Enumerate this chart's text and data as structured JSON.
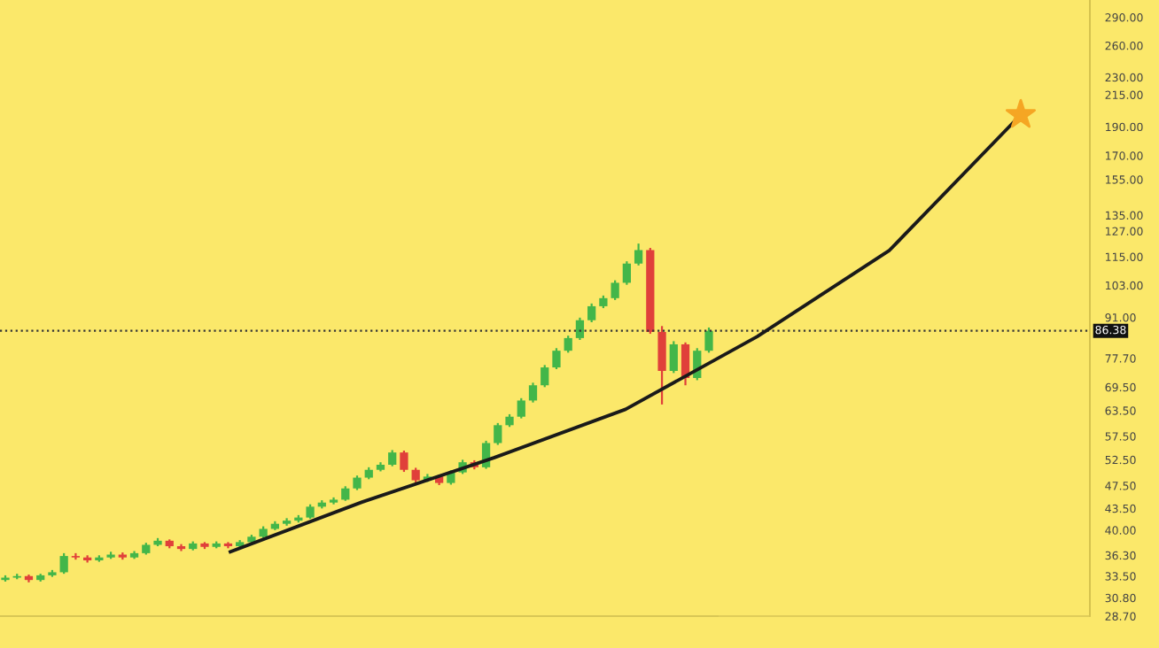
{
  "chart_data": [
    {
      "type": "candlestick",
      "categories": [
        null,
        null,
        null,
        null,
        null,
        null,
        null,
        null,
        null,
        null,
        null,
        null,
        null,
        null,
        null,
        null,
        null,
        null,
        null,
        null,
        null,
        null,
        null,
        null,
        null,
        null,
        null,
        null,
        null,
        null,
        null,
        null,
        null,
        null,
        null,
        null,
        null,
        null,
        null,
        null,
        null,
        null,
        null,
        null,
        null,
        null,
        null,
        null,
        null,
        null,
        null,
        null,
        null,
        null,
        null,
        null,
        null,
        null,
        null,
        null,
        null
      ],
      "ohlc": [
        [
          33.0,
          33.6,
          32.8,
          33.3
        ],
        [
          33.3,
          33.8,
          33.1,
          33.5
        ],
        [
          33.5,
          33.7,
          32.7,
          33.0
        ],
        [
          33.0,
          33.8,
          32.8,
          33.6
        ],
        [
          33.6,
          34.3,
          33.4,
          34.0
        ],
        [
          34.0,
          36.6,
          33.8,
          36.2
        ],
        [
          36.2,
          36.6,
          35.7,
          36.0
        ],
        [
          36.0,
          36.3,
          35.3,
          35.6
        ],
        [
          35.6,
          36.3,
          35.4,
          36.0
        ],
        [
          36.0,
          36.8,
          35.8,
          36.4
        ],
        [
          36.4,
          36.7,
          35.7,
          36.0
        ],
        [
          36.0,
          36.9,
          35.8,
          36.6
        ],
        [
          36.6,
          38.1,
          36.4,
          37.8
        ],
        [
          37.8,
          38.8,
          37.6,
          38.4
        ],
        [
          38.4,
          38.6,
          37.3,
          37.6
        ],
        [
          37.6,
          37.9,
          36.9,
          37.2
        ],
        [
          37.2,
          38.3,
          37.0,
          38.0
        ],
        [
          38.0,
          38.2,
          37.2,
          37.5
        ],
        [
          37.5,
          38.3,
          37.3,
          38.0
        ],
        [
          38.0,
          38.2,
          37.3,
          37.6
        ],
        [
          37.6,
          38.5,
          37.4,
          38.2
        ],
        [
          38.2,
          39.3,
          38.0,
          39.0
        ],
        [
          39.0,
          40.6,
          38.8,
          40.2
        ],
        [
          40.2,
          41.4,
          40.0,
          41.0
        ],
        [
          41.0,
          41.9,
          40.7,
          41.5
        ],
        [
          41.5,
          42.4,
          41.2,
          42.0
        ],
        [
          42.0,
          44.2,
          41.8,
          43.8
        ],
        [
          43.8,
          44.9,
          43.5,
          44.5
        ],
        [
          44.5,
          45.4,
          44.2,
          45.0
        ],
        [
          45.0,
          47.4,
          44.8,
          47.0
        ],
        [
          47.0,
          49.4,
          46.7,
          49.0
        ],
        [
          49.0,
          51.0,
          48.7,
          50.5
        ],
        [
          50.5,
          52.0,
          50.2,
          51.5
        ],
        [
          51.5,
          54.5,
          51.2,
          54.0
        ],
        [
          54.0,
          54.4,
          50.1,
          50.5
        ],
        [
          50.5,
          50.9,
          48.1,
          48.5
        ],
        [
          48.5,
          49.7,
          48.2,
          49.2
        ],
        [
          49.2,
          49.6,
          47.6,
          48.0
        ],
        [
          48.0,
          50.4,
          47.7,
          50.0
        ],
        [
          50.0,
          52.5,
          49.7,
          52.0
        ],
        [
          52.0,
          52.4,
          50.6,
          51.0
        ],
        [
          51.0,
          56.5,
          50.7,
          56.0
        ],
        [
          56.0,
          60.5,
          55.6,
          60.0
        ],
        [
          60.0,
          62.6,
          59.6,
          62.0
        ],
        [
          62.0,
          66.6,
          61.6,
          66.0
        ],
        [
          66.0,
          70.7,
          65.5,
          70.0
        ],
        [
          70.0,
          75.7,
          69.5,
          75.0
        ],
        [
          75.0,
          80.8,
          74.5,
          80.0
        ],
        [
          80.0,
          84.8,
          79.4,
          84.0
        ],
        [
          84.0,
          90.9,
          83.4,
          90.0
        ],
        [
          90.0,
          96.0,
          89.3,
          95.0
        ],
        [
          95.0,
          99.0,
          94.3,
          98.0
        ],
        [
          98.0,
          105.0,
          97.3,
          104.0
        ],
        [
          104.0,
          113.0,
          103.2,
          112.0
        ],
        [
          112.0,
          121.0,
          111.2,
          118.0
        ],
        [
          118.0,
          119.0,
          85.4,
          86.0
        ],
        [
          86.0,
          88.0,
          65.0,
          74.0
        ],
        [
          74.0,
          83.0,
          73.4,
          82.0
        ],
        [
          82.0,
          82.6,
          70.0,
          72.0
        ],
        [
          72.0,
          80.8,
          71.4,
          80.0
        ],
        [
          80.0,
          87.5,
          79.4,
          86.38
        ]
      ],
      "colors": [
        "#43b649",
        "#43b649",
        "#e0403a",
        "#43b649",
        "#43b649",
        "#43b649",
        "#e0403a",
        "#e0403a",
        "#43b649",
        "#43b649",
        "#e0403a",
        "#43b649",
        "#43b649",
        "#43b649",
        "#e0403a",
        "#e0403a",
        "#43b649",
        "#e0403a",
        "#43b649",
        "#e0403a",
        "#43b649",
        "#43b649",
        "#43b649",
        "#43b649",
        "#43b649",
        "#43b649",
        "#43b649",
        "#43b649",
        "#43b649",
        "#43b649",
        "#43b649",
        "#43b649",
        "#43b649",
        "#43b649",
        "#e0403a",
        "#e0403a",
        "#43b649",
        "#e0403a",
        "#43b649",
        "#43b649",
        "#e0403a",
        "#43b649",
        "#43b649",
        "#43b649",
        "#43b649",
        "#43b649",
        "#43b649",
        "#43b649",
        "#43b649",
        "#43b649",
        "#43b649",
        "#43b649",
        "#43b649",
        "#43b649",
        "#43b649",
        "#e0403a",
        "#e0403a",
        "#43b649",
        "#e0403a",
        "#43b649",
        "#43b649"
      ],
      "ylim": [
        28.7,
        310
      ],
      "log": true,
      "tick_labels": false
    },
    {
      "type": "line",
      "categories": [
        null,
        null,
        null,
        null,
        null,
        null,
        null
      ],
      "series": [
        {
          "values": [
            36.8,
            44.6,
            52.9,
            63.8,
            84.5,
            117.7,
            199
          ],
          "color": "#1a1a1a"
        }
      ],
      "ylim": [
        28.7,
        310
      ],
      "log": true,
      "yticks": [
        {
          "value": 290,
          "label": "290.00"
        },
        {
          "value": 260,
          "label": "260.00"
        },
        {
          "value": 230,
          "label": "230.00"
        },
        {
          "value": 215,
          "label": "215.00"
        },
        {
          "value": 190,
          "label": "190.00"
        },
        {
          "value": 170,
          "label": "170.00"
        },
        {
          "value": 155,
          "label": "155.00"
        },
        {
          "value": 135,
          "label": "135.00"
        },
        {
          "value": 127,
          "label": "127.00"
        },
        {
          "value": 115,
          "label": "115.00"
        },
        {
          "value": 103,
          "label": "103.00"
        },
        {
          "value": 91,
          "label": "91.00"
        },
        {
          "value": 77.7,
          "label": "77.70"
        },
        {
          "value": 69.5,
          "label": "69.50"
        },
        {
          "value": 63.5,
          "label": "63.50"
        },
        {
          "value": 57.5,
          "label": "57.50"
        },
        {
          "value": 52.5,
          "label": "52.50"
        },
        {
          "value": 47.5,
          "label": "47.50"
        },
        {
          "value": 43.5,
          "label": "43.50"
        },
        {
          "value": 40,
          "label": "40.00"
        },
        {
          "value": 36.3,
          "label": "36.30"
        },
        {
          "value": 33.5,
          "label": "33.50"
        },
        {
          "value": 30.8,
          "label": "30.80"
        },
        {
          "value": 28.7,
          "label": "28.70"
        }
      ],
      "tick_labels": "y",
      "ref_lines": [
        {
          "axis": "y",
          "value": 86.38,
          "label": "86.38",
          "color": "#333333",
          "line_style": "dotted"
        }
      ]
    }
  ]
}
